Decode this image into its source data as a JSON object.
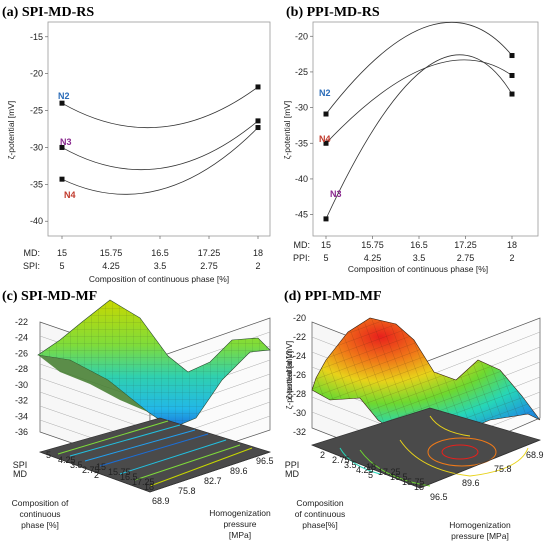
{
  "colors": {
    "md": "#2b6cb8",
    "protein": "#d89a18",
    "n2": "#2b6cb8",
    "n3": "#8a2a8f",
    "n4": "#c0392b",
    "floor": "#4a4a4a"
  },
  "panels": {
    "a": {
      "title": "(a) SPI-MD-RS"
    },
    "b": {
      "title": "(b) PPI-MD-RS"
    },
    "c": {
      "title": "(c) SPI-MD-MF"
    },
    "d": {
      "title": "(d) PPI-MD-MF"
    }
  },
  "chart_data": [
    {
      "panel": "a",
      "type": "line",
      "ylabel": "ζ-potential  [mV]",
      "xlabel": "Composition of continuous phase [%]",
      "ylim": [
        -42,
        -13
      ],
      "yticks": [
        -15,
        -20,
        -25,
        -30,
        -35,
        -40
      ],
      "x": [
        15,
        18
      ],
      "x_tick_rows": [
        {
          "label": "MD:",
          "ticks": [
            "15",
            "15.75",
            "16.5",
            "17.25",
            "18"
          ]
        },
        {
          "label": "SPI:",
          "ticks": [
            "5",
            "4.25",
            "3.5",
            "2.75",
            "2"
          ]
        }
      ],
      "series": [
        {
          "name": "N2",
          "values": [
            -24,
            -21.8
          ]
        },
        {
          "name": "N3",
          "values": [
            -30,
            -26.4
          ]
        },
        {
          "name": "N4",
          "values": [
            -34.3,
            -27.3
          ]
        }
      ]
    },
    {
      "panel": "b",
      "type": "line",
      "ylabel": "ζ-potential [mV]",
      "xlabel": "Composition of continuous phase [%]",
      "ylim": [
        -48,
        -18
      ],
      "yticks": [
        -20,
        -25,
        -30,
        -35,
        -40,
        -45
      ],
      "x": [
        15,
        18
      ],
      "x_tick_rows": [
        {
          "label": "MD:",
          "ticks": [
            "15",
            "15.75",
            "16.5",
            "17.25",
            "18"
          ]
        },
        {
          "label": "PPI:",
          "ticks": [
            "5",
            "4.25",
            "3.5",
            "2.75",
            "2"
          ]
        }
      ],
      "series": [
        {
          "name": "N2",
          "values": [
            -30.9,
            -22.7
          ]
        },
        {
          "name": "N3",
          "values": [
            -45.6,
            -28.1
          ]
        },
        {
          "name": "N4",
          "values": [
            -35,
            -25.5
          ]
        }
      ]
    },
    {
      "panel": "c",
      "type": "surface3d",
      "zlabel": "ζ-potential  [mV]",
      "zticks": [
        "-22",
        "-24",
        "-26",
        "-28",
        "-30",
        "-32",
        "-34",
        "-36"
      ],
      "x_axis": {
        "label": [
          "Composition of",
          "continuous",
          "phase [%]"
        ],
        "side_label": [
          "SPI",
          "MD"
        ],
        "ticks_top": [
          "5",
          "4.25",
          "3.5",
          "2.75",
          "2"
        ],
        "ticks_bottom": [
          "15",
          "15.75",
          "16.5",
          "17.25",
          "18"
        ]
      },
      "y_axis": {
        "label": [
          "Homogenization",
          "pressure",
          "[MPa]"
        ],
        "ticks": [
          "68.9",
          "75.8",
          "82.7",
          "89.6",
          "96.5"
        ]
      }
    },
    {
      "panel": "d",
      "type": "surface3d",
      "zlabel": "ζ-potential [mV]",
      "zticks": [
        "-20",
        "-22",
        "-24",
        "-26",
        "-28",
        "-30",
        "-32"
      ],
      "x_axis": {
        "label": [
          "Composition",
          "of continuous",
          "phase[%]"
        ],
        "side_label": [
          "PPI",
          "MD"
        ],
        "ticks_top": [
          "2",
          "2.75",
          "3.5",
          "4.25",
          "5"
        ],
        "ticks_bottom": [
          "18",
          "17.25",
          "16.5",
          "15.75",
          "15"
        ]
      },
      "y_axis": {
        "label": [
          "Homogenization",
          "pressure [MPa]"
        ],
        "ticks": [
          "96.5",
          "89.6",
          "75.8",
          "68.9"
        ]
      }
    }
  ]
}
